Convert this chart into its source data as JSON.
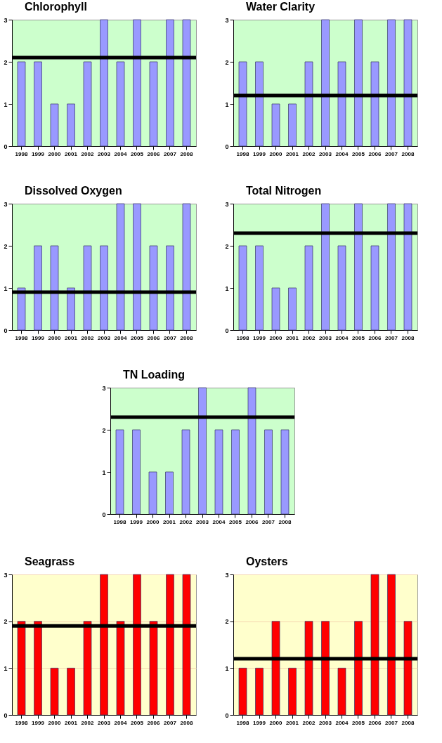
{
  "chart_data": [
    {
      "type": "bar",
      "title": "Chlorophyll",
      "categories": [
        "1998",
        "1999",
        "2000",
        "2001",
        "2002",
        "2003",
        "2004",
        "2005",
        "2006",
        "2007",
        "2008"
      ],
      "series": [
        {
          "color": "#9999ff",
          "values": [
            2,
            2,
            1,
            1,
            2,
            3,
            2,
            3,
            2,
            3,
            3
          ]
        }
      ],
      "ylim": [
        0,
        3
      ],
      "yticks": [
        0,
        1,
        2,
        3
      ],
      "ref_lines": [
        {
          "axis": "y",
          "value": 2.1
        }
      ]
    },
    {
      "type": "bar",
      "title": "Water Clarity",
      "categories": [
        "1998",
        "1999",
        "2000",
        "2001",
        "2002",
        "2003",
        "2004",
        "2005",
        "2006",
        "2007",
        "2008"
      ],
      "series": [
        {
          "color": "#9999ff",
          "values": [
            2,
            2,
            1,
            1,
            2,
            3,
            2,
            3,
            2,
            3,
            3
          ]
        }
      ],
      "ylim": [
        0,
        3
      ],
      "yticks": [
        0,
        1,
        2,
        3
      ],
      "ref_lines": [
        {
          "axis": "y",
          "value": 1.2
        }
      ]
    },
    {
      "type": "bar",
      "title": "Dissolved Oxygen",
      "categories": [
        "1998",
        "1999",
        "2000",
        "2001",
        "2002",
        "2003",
        "2004",
        "2005",
        "2006",
        "2007",
        "2008"
      ],
      "series": [
        {
          "color": "#9999ff",
          "values": [
            1,
            2,
            2,
            1,
            2,
            2,
            3,
            3,
            2,
            2,
            3
          ]
        }
      ],
      "ylim": [
        0,
        3
      ],
      "yticks": [
        0,
        1,
        2,
        3
      ],
      "ref_lines": [
        {
          "axis": "y",
          "value": 0.9
        }
      ]
    },
    {
      "type": "bar",
      "title": "Total Nitrogen",
      "categories": [
        "1998",
        "1999",
        "2000",
        "2001",
        "2002",
        "2003",
        "2004",
        "2005",
        "2006",
        "2007",
        "2008"
      ],
      "series": [
        {
          "color": "#9999ff",
          "values": [
            2,
            2,
            1,
            1,
            2,
            3,
            2,
            3,
            2,
            3,
            3
          ]
        }
      ],
      "ylim": [
        0,
        3
      ],
      "yticks": [
        0,
        1,
        2,
        3
      ],
      "ref_lines": [
        {
          "axis": "y",
          "value": 2.3
        }
      ]
    },
    {
      "type": "bar",
      "title": "TN Loading",
      "categories": [
        "1998",
        "1999",
        "2000",
        "2001",
        "2002",
        "2003",
        "2004",
        "2005",
        "2006",
        "2007",
        "2008"
      ],
      "series": [
        {
          "color": "#9999ff",
          "values": [
            2,
            2,
            1,
            1,
            2,
            3,
            2,
            2,
            3,
            2,
            2
          ]
        }
      ],
      "ylim": [
        0,
        3
      ],
      "yticks": [
        0,
        1,
        2,
        3
      ],
      "ref_lines": [
        {
          "axis": "y",
          "value": 2.3
        }
      ]
    },
    {
      "type": "bar",
      "title": "Seagrass",
      "categories": [
        "1998",
        "1999",
        "2000",
        "2001",
        "2002",
        "2003",
        "2004",
        "2005",
        "2006",
        "2007",
        "2008"
      ],
      "series": [
        {
          "color": "#ff0000",
          "values": [
            2,
            2,
            1,
            1,
            2,
            3,
            2,
            3,
            2,
            3,
            3
          ]
        }
      ],
      "ylim": [
        0,
        3
      ],
      "yticks": [
        0,
        1,
        2,
        3
      ],
      "grid": "y",
      "ref_lines": [
        {
          "axis": "y",
          "value": 1.9
        }
      ]
    },
    {
      "type": "bar",
      "title": "Oysters",
      "categories": [
        "1998",
        "1999",
        "2000",
        "2001",
        "2002",
        "2003",
        "2004",
        "2005",
        "2006",
        "2007",
        "2008"
      ],
      "series": [
        {
          "color": "#ff0000",
          "values": [
            1,
            1,
            2,
            1,
            2,
            2,
            1,
            2,
            3,
            3,
            2
          ]
        }
      ],
      "ylim": [
        0,
        3
      ],
      "yticks": [
        0,
        1,
        2,
        3
      ],
      "grid": "y",
      "ref_lines": [
        {
          "axis": "y",
          "value": 1.2
        }
      ]
    }
  ]
}
